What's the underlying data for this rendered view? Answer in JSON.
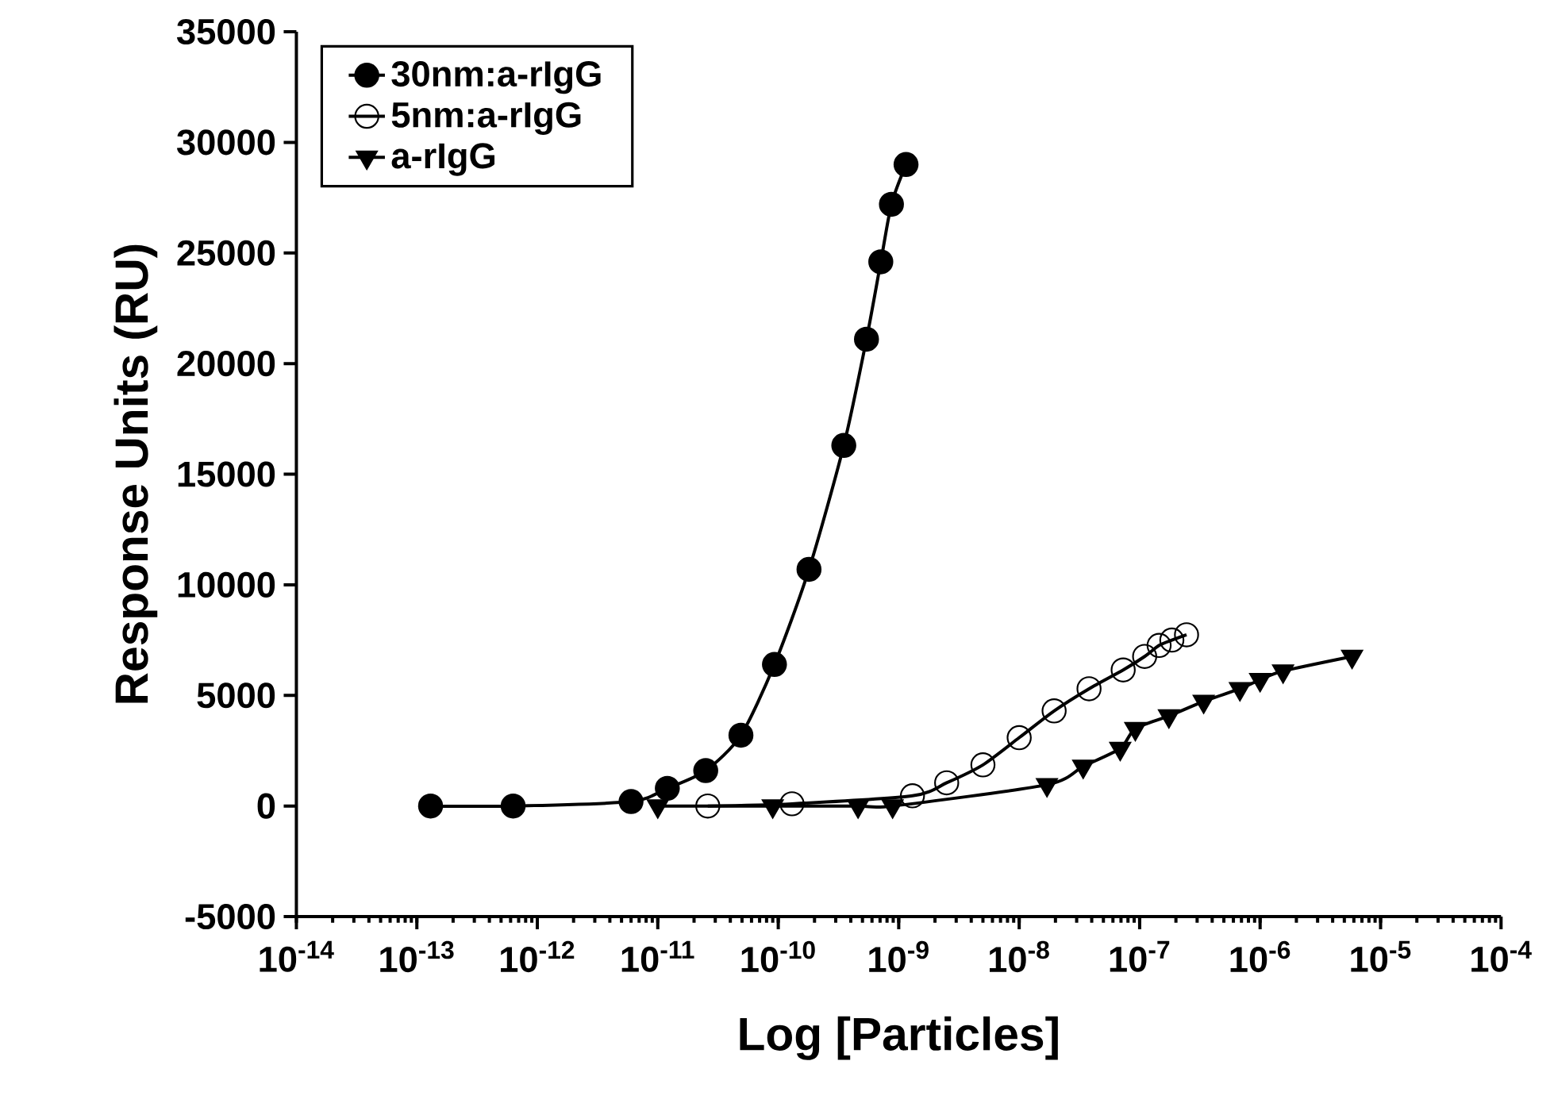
{
  "chart_data": {
    "type": "line",
    "xlabel": "Log [Particles]",
    "ylabel": "Response Units (RU)",
    "log": "x",
    "grid": false,
    "legend": "top left",
    "line_style": "solid",
    "xlim": [
      1e-14,
      0.0001
    ],
    "ylim": [
      -5000,
      35000
    ],
    "xticks": [
      {
        "value": 1e-14,
        "label": "10$^{-14}$"
      },
      {
        "value": 1e-13,
        "label": "10$^{-13}$"
      },
      {
        "value": 1e-12,
        "label": "10$^{-12}$"
      },
      {
        "value": 1e-11,
        "label": "10$^{-11}$"
      },
      {
        "value": 1e-10,
        "label": "10$^{-10}$"
      },
      {
        "value": 1e-09,
        "label": "10$^{-9}$"
      },
      {
        "value": 1e-08,
        "label": "10$^{-8}$"
      },
      {
        "value": 1e-07,
        "label": "10$^{-7}$"
      },
      {
        "value": 1e-06,
        "label": "10$^{-6}$"
      },
      {
        "value": 1e-05,
        "label": "10$^{-5}$"
      },
      {
        "value": 0.0001,
        "label": "10$^{-4}$"
      }
    ],
    "yticks": [
      -5000,
      0,
      5000,
      10000,
      15000,
      20000,
      25000,
      30000,
      35000
    ],
    "series": [
      {
        "name": "30nm:a-rIgG",
        "color": "#000000",
        "marker": "circle",
        "x": [
          1.3e-13,
          6.3e-13,
          6e-12,
          1.2e-11,
          2.5e-11,
          4.9e-11,
          9.3e-11,
          1.8e-10,
          3.5e-10,
          5.4e-10,
          7.1e-10,
          8.7e-10,
          1.15e-09
        ],
        "values": [
          0,
          0,
          200,
          800,
          1600,
          3200,
          6400,
          10700,
          16300,
          21100,
          24600,
          27200,
          29000
        ]
      },
      {
        "name": "5nm:a-rIgG",
        "color": "#000000",
        "marker": "circle-open",
        "x": [
          2.6e-11,
          1.3e-10,
          1.3e-09,
          2.5e-09,
          5e-09,
          1e-08,
          1.95e-08,
          3.8e-08,
          7.3e-08,
          1.1e-07,
          1.45e-07,
          1.85e-07,
          2.45e-07
        ],
        "values": [
          0,
          100,
          460,
          1050,
          1860,
          3090,
          4300,
          5300,
          6150,
          6760,
          7260,
          7500,
          7740
        ]
      },
      {
        "name": "a-rIgG",
        "color": "#000000",
        "marker": "triangle",
        "x": [
          1e-11,
          9e-11,
          4.6e-10,
          8.9e-10,
          1.7e-08,
          3.4e-08,
          6.9e-08,
          9.2e-08,
          1.75e-07,
          3.4e-07,
          6.8e-07,
          1e-06,
          1.55e-06,
          5.8e-06
        ],
        "values": [
          0,
          0,
          0,
          0,
          960,
          1790,
          2600,
          3500,
          4070,
          4730,
          5300,
          5710,
          6100,
          6760
        ]
      }
    ]
  }
}
